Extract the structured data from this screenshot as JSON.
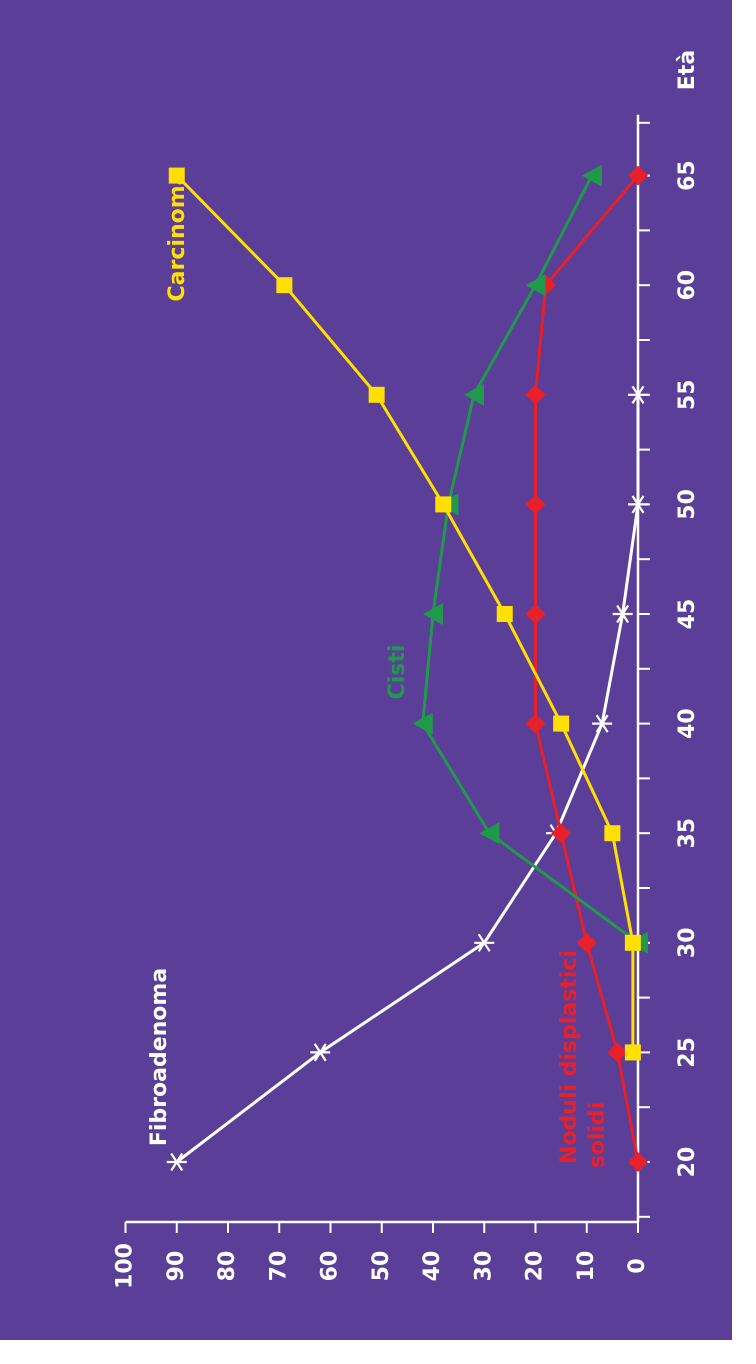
{
  "chart_data": {
    "type": "line",
    "orientation": "rotated-90",
    "background_color": "#5a3e98",
    "axis_color": "#ffffff",
    "x": [
      20,
      25,
      30,
      35,
      40,
      45,
      50,
      55,
      60,
      65
    ],
    "xlabel": "Età",
    "xlim": [
      17.5,
      67.5
    ],
    "x_ticks": [
      "20",
      "25",
      "30",
      "35",
      "40",
      "45",
      "50",
      "55",
      "60",
      "65"
    ],
    "ylim": [
      0,
      100
    ],
    "y_ticks": [
      "0",
      "10",
      "20",
      "30",
      "40",
      "50",
      "60",
      "70",
      "80",
      "90",
      "100"
    ],
    "series": [
      {
        "name": "Fibroadenoma",
        "color": "#ffffff",
        "marker": "asterisk",
        "points": [
          [
            20,
            90
          ],
          [
            25,
            62
          ],
          [
            30,
            30
          ],
          [
            35,
            16
          ],
          [
            40,
            7
          ],
          [
            45,
            3
          ],
          [
            50,
            0
          ],
          [
            55,
            0
          ]
        ]
      },
      {
        "name": "Noduli displastici solidi",
        "color": "#e8202a",
        "marker": "diamond",
        "points": [
          [
            20,
            0
          ],
          [
            25,
            4
          ],
          [
            30,
            10
          ],
          [
            35,
            15
          ],
          [
            40,
            20
          ],
          [
            45,
            20
          ],
          [
            50,
            20
          ],
          [
            55,
            20
          ],
          [
            60,
            18
          ],
          [
            65,
            0
          ]
        ]
      },
      {
        "name": "Cisti",
        "color": "#1f9a4a",
        "marker": "triangle",
        "points": [
          [
            30,
            0
          ],
          [
            35,
            29
          ],
          [
            40,
            42
          ],
          [
            45,
            40
          ],
          [
            50,
            37
          ],
          [
            55,
            32
          ],
          [
            60,
            20
          ],
          [
            65,
            9
          ]
        ]
      },
      {
        "name": "Carcinoma",
        "color": "#ffe000",
        "marker": "square",
        "points": [
          [
            25,
            1
          ],
          [
            30,
            1
          ],
          [
            35,
            5
          ],
          [
            40,
            15
          ],
          [
            45,
            26
          ],
          [
            50,
            38
          ],
          [
            55,
            51
          ],
          [
            60,
            69
          ],
          [
            65,
            90
          ]
        ]
      }
    ],
    "annotations": [
      {
        "text": "Fibroadenoma",
        "color": "#ffffff"
      },
      {
        "text": "Noduli displastici",
        "color": "#e8202a"
      },
      {
        "text": "solidi",
        "color": "#e8202a"
      },
      {
        "text": "Cisti",
        "color": "#1f9a4a"
      },
      {
        "text": "Carcinoma",
        "color": "#ffe000"
      }
    ]
  }
}
